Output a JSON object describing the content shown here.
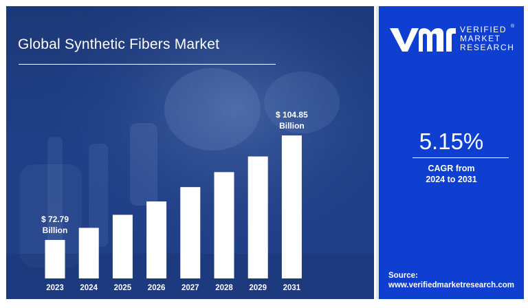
{
  "header": {
    "title": "Global Synthetic Fibers Market"
  },
  "brand": {
    "line1": "VERIFIED",
    "line2": "MARKET",
    "line3": "RESEARCH",
    "registered": "®"
  },
  "cagr": {
    "value": "5.15%",
    "label_line1": "CAGR from",
    "label_line2": "2024 to 2031"
  },
  "source": {
    "label": "Source:",
    "url": "www.verifiedmarketresearch.com"
  },
  "colors": {
    "left_panel": "#1f3f86",
    "right_panel": "#0e3fd0",
    "bars": "#ffffff",
    "text": "#ffffff"
  },
  "chart_data": {
    "type": "bar",
    "title": "Global Synthetic Fibers Market",
    "categories": [
      "2023",
      "2024",
      "2025",
      "2026",
      "2027",
      "2028",
      "2029",
      "2031"
    ],
    "values": [
      72.79,
      76.5,
      80.5,
      84.6,
      89.0,
      93.6,
      98.4,
      104.85
    ],
    "annotations": [
      {
        "category": "2023",
        "line1": "$ 72.79",
        "line2": "Billion"
      },
      {
        "category": "2031",
        "line1": "$ 104.85",
        "line2": "Billion"
      }
    ],
    "xlabel": "",
    "ylabel": "",
    "grid": false,
    "legend": "none"
  }
}
